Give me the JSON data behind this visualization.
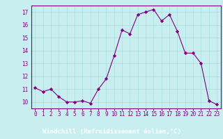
{
  "x": [
    0,
    1,
    2,
    3,
    4,
    5,
    6,
    7,
    8,
    9,
    10,
    11,
    12,
    13,
    14,
    15,
    16,
    17,
    18,
    19,
    20,
    21,
    22,
    23
  ],
  "y": [
    11.1,
    10.8,
    11.0,
    10.4,
    10.0,
    10.0,
    10.1,
    9.9,
    11.0,
    11.8,
    13.6,
    15.6,
    15.3,
    16.8,
    17.0,
    17.2,
    16.3,
    16.8,
    15.5,
    13.8,
    13.8,
    13.0,
    10.1,
    9.8
  ],
  "line_color": "#800080",
  "marker": "D",
  "marker_size": 2.2,
  "plot_bg": "#c8eef0",
  "bottom_bar_color": "#800080",
  "grid_color": "#aadddd",
  "xlabel": "Windchill (Refroidissement éolien,°C)",
  "xlabel_color": "#ffffff",
  "xlabel_fontsize": 6.5,
  "tick_color": "#800080",
  "tick_fontsize": 5.5,
  "ylim": [
    9.5,
    17.5
  ],
  "yticks": [
    10,
    11,
    12,
    13,
    14,
    15,
    16,
    17
  ],
  "xticks": [
    0,
    1,
    2,
    3,
    4,
    5,
    6,
    7,
    8,
    9,
    10,
    11,
    12,
    13,
    14,
    15,
    16,
    17,
    18,
    19,
    20,
    21,
    22,
    23
  ]
}
